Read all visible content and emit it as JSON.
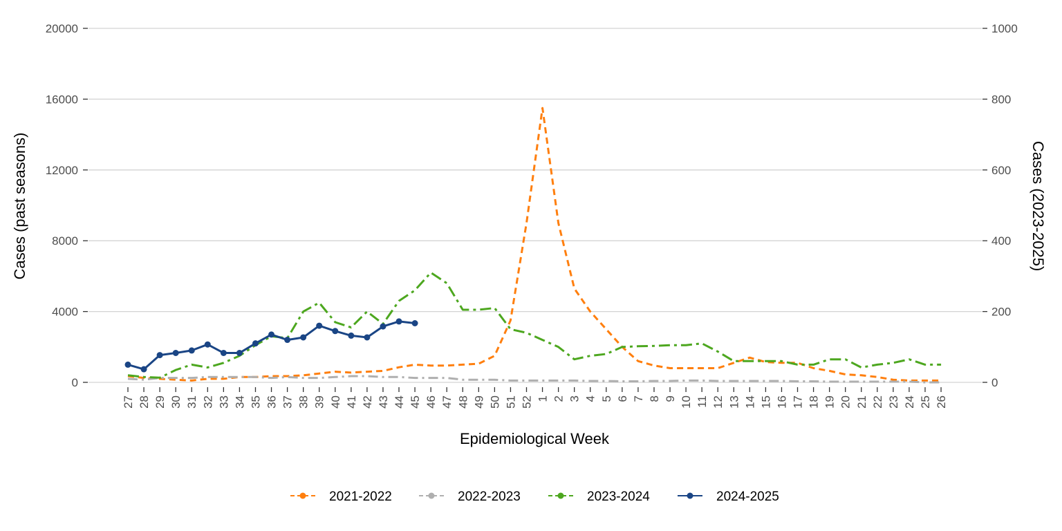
{
  "chart_data": {
    "type": "line",
    "xlabel": "Epidemiological Week",
    "ylabel_left": "Cases (past seasons)",
    "ylabel_right": "Cases (2023-2025)",
    "ylim_left": [
      0,
      20000
    ],
    "ylim_right": [
      0,
      1000
    ],
    "yticks_left": [
      "0",
      "4000",
      "8000",
      "12000",
      "16000",
      "20000"
    ],
    "yticks_right": [
      "0",
      "200",
      "400",
      "600",
      "800",
      "1000"
    ],
    "grid": "horizontal",
    "legend_position": "bottom",
    "categories": [
      "27",
      "28",
      "29",
      "30",
      "31",
      "32",
      "33",
      "34",
      "35",
      "36",
      "37",
      "38",
      "39",
      "40",
      "41",
      "42",
      "43",
      "44",
      "45",
      "46",
      "47",
      "48",
      "49",
      "50",
      "51",
      "52",
      "1",
      "2",
      "3",
      "4",
      "5",
      "6",
      "7",
      "8",
      "9",
      "10",
      "11",
      "12",
      "13",
      "14",
      "15",
      "16",
      "17",
      "18",
      "19",
      "20",
      "21",
      "22",
      "23",
      "24",
      "25",
      "26"
    ],
    "series": [
      {
        "name": "2021-2022",
        "axis": "left",
        "color": "#FF7F0E",
        "dash": "9,6",
        "values": [
          350,
          250,
          200,
          150,
          100,
          200,
          200,
          300,
          300,
          350,
          350,
          400,
          500,
          600,
          550,
          600,
          650,
          850,
          1000,
          950,
          950,
          1000,
          1050,
          1500,
          3500,
          9000,
          15500,
          9000,
          5300,
          4000,
          3000,
          2000,
          1200,
          950,
          800,
          800,
          800,
          800,
          1100,
          1400,
          1150,
          1100,
          1100,
          800,
          650,
          450,
          400,
          300,
          150,
          100,
          100,
          100
        ]
      },
      {
        "name": "2022-2023",
        "axis": "left",
        "color": "#AFAFAF",
        "dash": "14,6,3,6",
        "values": [
          200,
          150,
          250,
          250,
          250,
          300,
          300,
          300,
          300,
          250,
          300,
          250,
          250,
          300,
          350,
          350,
          300,
          300,
          250,
          250,
          250,
          150,
          150,
          150,
          100,
          100,
          100,
          100,
          100,
          80,
          80,
          60,
          60,
          80,
          80,
          100,
          100,
          80,
          80,
          80,
          80,
          80,
          60,
          60,
          40,
          40,
          40,
          40,
          40,
          40,
          0,
          0
        ]
      },
      {
        "name": "2023-2024",
        "axis": "right",
        "color": "#4DA71F",
        "dash": "16,6,4,6",
        "values": [
          20,
          15,
          13,
          35,
          50,
          42,
          55,
          75,
          105,
          130,
          125,
          200,
          225,
          170,
          155,
          200,
          165,
          230,
          260,
          310,
          280,
          205,
          205,
          210,
          150,
          140,
          120,
          100,
          65,
          75,
          80,
          100,
          102,
          103,
          105,
          105,
          110,
          87,
          60,
          60,
          60,
          60,
          50,
          50,
          65,
          65,
          42,
          50,
          55,
          65,
          50,
          50
        ]
      },
      {
        "name": "2024-2025",
        "axis": "right",
        "color": "#1A4585",
        "dash": "",
        "values": [
          50,
          37,
          77,
          83,
          90,
          107,
          83,
          83,
          110,
          135,
          120,
          127,
          160,
          145,
          132,
          127,
          158,
          172,
          167,
          null,
          null,
          null,
          null,
          null,
          null,
          null,
          null,
          null,
          null,
          null,
          null,
          null,
          null,
          null,
          null,
          null,
          null,
          null,
          null,
          null,
          null,
          null,
          null,
          null,
          null,
          null,
          null,
          null,
          null,
          null,
          null,
          null
        ]
      }
    ]
  }
}
